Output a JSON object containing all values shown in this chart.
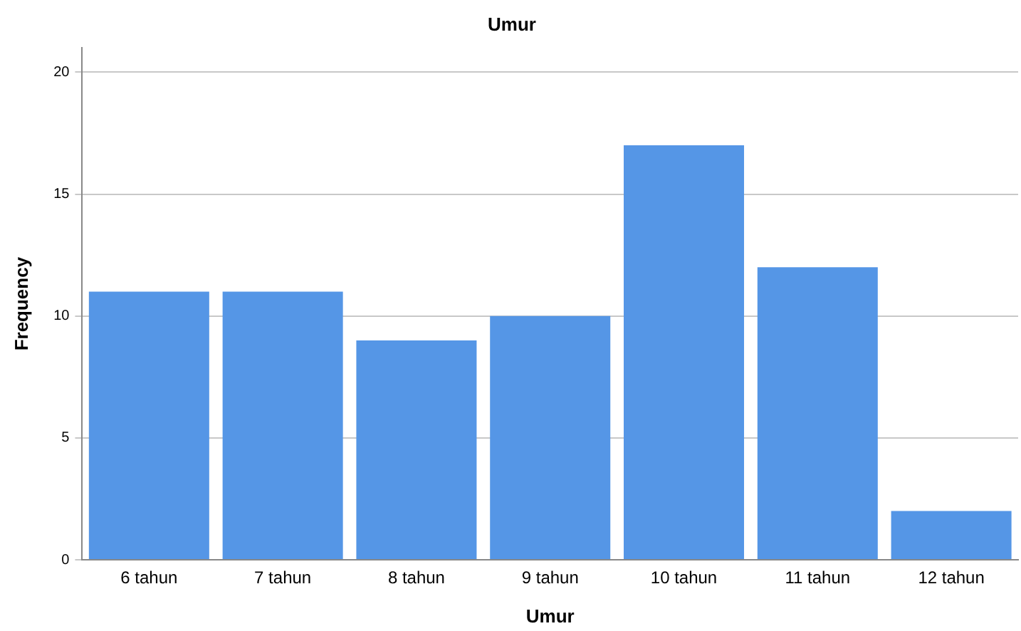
{
  "chart_data": {
    "type": "bar",
    "title": "Umur",
    "xlabel": "Umur",
    "ylabel": "Frequency",
    "categories": [
      "6 tahun",
      "7 tahun",
      "8 tahun",
      "9 tahun",
      "10 tahun",
      "11 tahun",
      "12 tahun"
    ],
    "values": [
      11,
      11,
      9,
      10,
      17,
      12,
      2
    ],
    "color": "#5596e6",
    "ylim": [
      0,
      21
    ],
    "yticks": [
      0,
      5,
      10,
      15,
      20
    ],
    "grid": "y"
  }
}
